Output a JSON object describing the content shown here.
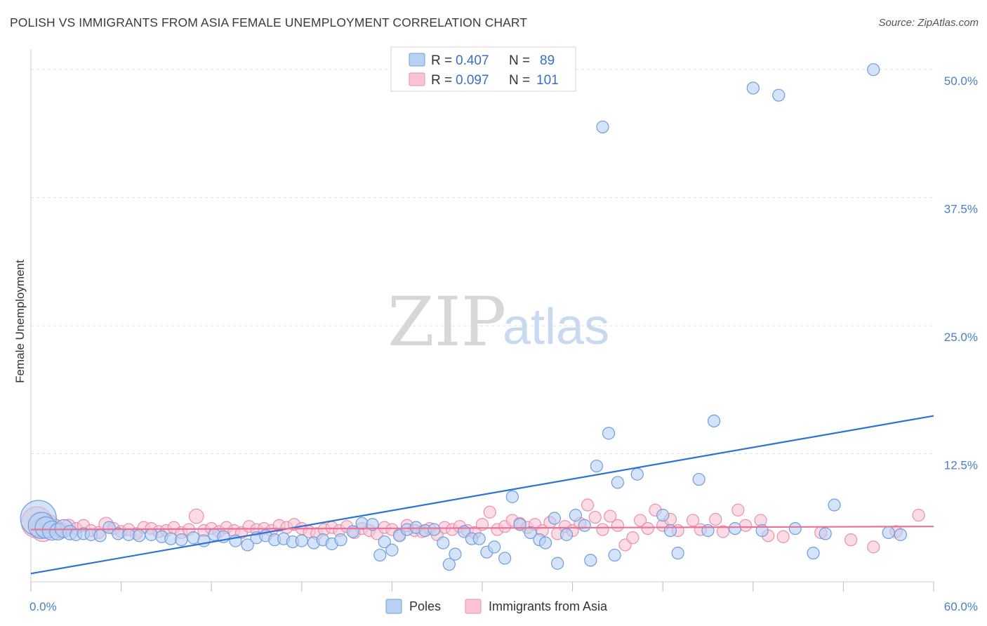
{
  "title": "POLISH VS IMMIGRANTS FROM ASIA FEMALE UNEMPLOYMENT CORRELATION CHART",
  "source": "Source: ZipAtlas.com",
  "watermark": {
    "zip": "ZIP",
    "atlas": "atlas"
  },
  "colors": {
    "poles_fill": "#b8d0f2",
    "poles_stroke": "#6e9de0",
    "poles_line": "#2e72d2",
    "asia_fill": "#f8c4d4",
    "asia_stroke": "#ea8fad",
    "asia_line": "#e8729a",
    "grid": "#dddddd",
    "axis_text": "#4a7fc8"
  },
  "legend": {
    "rows": [
      {
        "r_label": "R = ",
        "r_value": "0.407",
        "n_label": "N = ",
        "n_value": "89"
      },
      {
        "r_label": "R = ",
        "r_value": "0.097",
        "n_label": "N = ",
        "n_value": "101"
      }
    ]
  },
  "chart_data": {
    "type": "scatter",
    "title": "POLISH VS IMMIGRANTS FROM ASIA FEMALE UNEMPLOYMENT CORRELATION CHART",
    "xlabel": "",
    "ylabel": "Female Unemployment",
    "xlim": [
      0,
      60
    ],
    "ylim": [
      0,
      52
    ],
    "x_tick_labels": [
      "0.0%",
      "60.0%"
    ],
    "y_ticks": [
      12.5,
      25.0,
      37.5,
      50.0
    ],
    "y_tick_labels": [
      "12.5%",
      "25.0%",
      "37.5%",
      "50.0%"
    ],
    "grid": true,
    "legend_position": "top-center",
    "series": [
      {
        "name": "Poles",
        "r": 0.407,
        "n": 89,
        "trend": {
          "x": [
            0,
            60
          ],
          "y": [
            0.8,
            16.2
          ]
        },
        "points": [
          [
            0.5,
            6.2,
            3
          ],
          [
            0.7,
            5.5,
            2.2
          ],
          [
            1.0,
            5.3,
            1.8
          ],
          [
            1.4,
            5.0,
            1.6
          ],
          [
            1.8,
            4.9,
            1.4
          ],
          [
            2.2,
            5.2,
            1.5
          ],
          [
            2.6,
            4.8,
            1.2
          ],
          [
            3.0,
            4.6,
            1
          ],
          [
            3.5,
            4.7,
            1
          ],
          [
            4.0,
            4.6,
            1
          ],
          [
            4.6,
            4.5,
            1
          ],
          [
            5.2,
            5.3,
            1
          ],
          [
            5.8,
            4.7,
            1
          ],
          [
            6.5,
            4.6,
            1
          ],
          [
            7.2,
            4.5,
            1
          ],
          [
            8.0,
            4.6,
            1
          ],
          [
            8.7,
            4.4,
            1
          ],
          [
            9.3,
            4.2,
            1
          ],
          [
            10.0,
            4.1,
            1
          ],
          [
            10.8,
            4.3,
            1
          ],
          [
            11.5,
            4.0,
            1
          ],
          [
            12.2,
            4.6,
            1
          ],
          [
            12.8,
            4.4,
            1
          ],
          [
            13.6,
            4.0,
            1
          ],
          [
            14.4,
            3.6,
            1
          ],
          [
            15.0,
            4.3,
            1
          ],
          [
            15.6,
            4.5,
            1
          ],
          [
            16.2,
            4.1,
            1
          ],
          [
            16.8,
            4.2,
            1
          ],
          [
            17.4,
            3.9,
            1
          ],
          [
            18.0,
            4.0,
            1
          ],
          [
            18.8,
            3.8,
            1
          ],
          [
            19.4,
            4.1,
            1
          ],
          [
            20.0,
            3.7,
            1
          ],
          [
            20.6,
            4.1,
            1
          ],
          [
            21.4,
            4.9,
            1
          ],
          [
            22.0,
            5.7,
            1
          ],
          [
            22.7,
            5.6,
            1
          ],
          [
            23.2,
            2.6,
            1
          ],
          [
            23.5,
            3.9,
            1
          ],
          [
            24.0,
            3.1,
            1
          ],
          [
            24.5,
            4.5,
            1
          ],
          [
            25.0,
            5.1,
            1
          ],
          [
            25.6,
            5.3,
            1
          ],
          [
            26.2,
            5.0,
            1
          ],
          [
            26.8,
            5.1,
            1
          ],
          [
            27.4,
            3.8,
            1
          ],
          [
            27.8,
            1.7,
            1
          ],
          [
            28.2,
            2.7,
            1
          ],
          [
            28.8,
            4.9,
            1
          ],
          [
            29.3,
            4.2,
            1
          ],
          [
            29.8,
            4.2,
            1
          ],
          [
            30.3,
            2.9,
            1
          ],
          [
            30.8,
            3.4,
            1
          ],
          [
            31.5,
            2.3,
            1
          ],
          [
            32.0,
            8.3,
            1
          ],
          [
            32.5,
            5.6,
            1
          ],
          [
            33.2,
            4.8,
            1
          ],
          [
            33.8,
            4.1,
            1
          ],
          [
            34.2,
            3.8,
            1
          ],
          [
            34.8,
            6.2,
            1
          ],
          [
            35.0,
            1.8,
            1
          ],
          [
            35.6,
            4.6,
            1
          ],
          [
            36.2,
            6.5,
            1
          ],
          [
            36.8,
            5.5,
            1
          ],
          [
            37.2,
            2.1,
            1
          ],
          [
            37.6,
            11.3,
            1
          ],
          [
            38.0,
            44.4,
            1
          ],
          [
            38.4,
            14.5,
            1
          ],
          [
            38.8,
            2.6,
            1
          ],
          [
            39.0,
            9.7,
            1
          ],
          [
            40.3,
            10.5,
            1
          ],
          [
            42.0,
            6.5,
            1
          ],
          [
            42.5,
            5.0,
            1
          ],
          [
            43.0,
            2.8,
            1
          ],
          [
            44.4,
            10.0,
            1
          ],
          [
            45.0,
            5.0,
            1
          ],
          [
            45.4,
            15.7,
            1
          ],
          [
            46.8,
            5.2,
            1
          ],
          [
            48.0,
            48.2,
            1
          ],
          [
            48.6,
            5.0,
            1
          ],
          [
            49.7,
            47.5,
            1
          ],
          [
            50.8,
            5.2,
            1
          ],
          [
            52.0,
            2.8,
            1
          ],
          [
            52.8,
            4.7,
            1
          ],
          [
            53.4,
            7.5,
            1
          ],
          [
            56.0,
            50.0,
            1
          ],
          [
            57.0,
            4.8,
            1
          ],
          [
            57.8,
            4.6,
            1
          ]
        ]
      },
      {
        "name": "Immigrants from Asia",
        "r": 0.097,
        "n": 101,
        "trend": {
          "x": [
            0,
            60
          ],
          "y": [
            5.1,
            5.4
          ]
        },
        "points": [
          [
            0.4,
            5.8,
            2.6
          ],
          [
            0.8,
            5.1,
            2
          ],
          [
            1.2,
            5.6,
            1.6
          ],
          [
            1.6,
            5.3,
            1.4
          ],
          [
            2.0,
            5.0,
            1.3
          ],
          [
            2.5,
            5.4,
            1.2
          ],
          [
            3.0,
            5.2,
            1
          ],
          [
            3.5,
            5.5,
            1
          ],
          [
            4.0,
            5.0,
            1
          ],
          [
            4.5,
            4.8,
            1
          ],
          [
            5.0,
            5.6,
            1.2
          ],
          [
            5.5,
            5.2,
            1
          ],
          [
            6.0,
            4.9,
            1
          ],
          [
            6.5,
            5.1,
            1
          ],
          [
            7.0,
            4.7,
            1
          ],
          [
            7.5,
            5.3,
            1
          ],
          [
            8.0,
            5.2,
            1
          ],
          [
            8.5,
            4.9,
            1
          ],
          [
            9.0,
            5.0,
            1
          ],
          [
            9.5,
            5.3,
            1
          ],
          [
            10.0,
            4.8,
            1
          ],
          [
            10.5,
            5.1,
            1
          ],
          [
            11.0,
            6.4,
            1.2
          ],
          [
            11.5,
            5.0,
            1
          ],
          [
            12.0,
            5.2,
            1
          ],
          [
            12.5,
            4.9,
            1
          ],
          [
            13.0,
            5.3,
            1
          ],
          [
            13.5,
            5.0,
            1
          ],
          [
            14.0,
            4.8,
            1
          ],
          [
            14.5,
            5.4,
            1
          ],
          [
            15.0,
            5.1,
            1
          ],
          [
            15.5,
            5.2,
            1
          ],
          [
            16.0,
            5.0,
            1
          ],
          [
            16.5,
            5.5,
            1
          ],
          [
            17.0,
            5.3,
            1
          ],
          [
            17.5,
            5.6,
            1
          ],
          [
            18.0,
            5.2,
            1
          ],
          [
            18.5,
            4.9,
            1
          ],
          [
            19.0,
            4.7,
            1
          ],
          [
            19.5,
            5.1,
            1
          ],
          [
            20.0,
            5.3,
            1
          ],
          [
            20.5,
            5.0,
            1
          ],
          [
            21.0,
            5.4,
            1
          ],
          [
            21.5,
            4.8,
            1
          ],
          [
            22.0,
            5.2,
            1
          ],
          [
            22.5,
            5.0,
            1
          ],
          [
            23.0,
            4.7,
            1
          ],
          [
            23.5,
            5.3,
            1
          ],
          [
            24.0,
            5.1,
            1
          ],
          [
            24.5,
            4.6,
            1
          ],
          [
            25.0,
            5.5,
            1
          ],
          [
            25.5,
            5.0,
            1
          ],
          [
            26.0,
            4.9,
            1
          ],
          [
            26.5,
            5.2,
            1
          ],
          [
            27.0,
            4.6,
            1
          ],
          [
            27.5,
            5.3,
            1
          ],
          [
            28.0,
            5.1,
            1
          ],
          [
            28.5,
            5.4,
            1
          ],
          [
            29.0,
            5.0,
            1
          ],
          [
            29.5,
            4.8,
            1
          ],
          [
            30.0,
            5.6,
            1
          ],
          [
            30.5,
            6.8,
            1
          ],
          [
            31.0,
            5.1,
            1
          ],
          [
            31.5,
            5.4,
            1
          ],
          [
            32.0,
            6.0,
            1
          ],
          [
            32.5,
            5.7,
            1
          ],
          [
            33.0,
            5.3,
            1
          ],
          [
            33.5,
            5.6,
            1
          ],
          [
            34.0,
            5.0,
            1
          ],
          [
            34.5,
            5.8,
            1
          ],
          [
            35.0,
            4.7,
            1
          ],
          [
            35.5,
            5.4,
            1
          ],
          [
            36.0,
            5.0,
            1
          ],
          [
            36.5,
            5.7,
            1
          ],
          [
            37.0,
            7.5,
            1
          ],
          [
            37.5,
            6.3,
            1
          ],
          [
            38.0,
            5.1,
            1
          ],
          [
            38.5,
            6.4,
            1
          ],
          [
            39.0,
            5.5,
            1
          ],
          [
            39.5,
            3.6,
            1
          ],
          [
            40.0,
            4.3,
            1
          ],
          [
            40.5,
            6.0,
            1
          ],
          [
            41.0,
            5.2,
            1
          ],
          [
            41.5,
            7.0,
            1
          ],
          [
            42.0,
            5.5,
            1
          ],
          [
            42.5,
            6.1,
            1
          ],
          [
            43.0,
            5.0,
            1
          ],
          [
            44.0,
            6.0,
            1
          ],
          [
            44.5,
            5.1,
            1
          ],
          [
            45.5,
            6.1,
            1
          ],
          [
            46.0,
            4.9,
            1
          ],
          [
            47.0,
            7.0,
            1
          ],
          [
            47.5,
            5.5,
            1
          ],
          [
            48.5,
            6.0,
            1
          ],
          [
            49.0,
            4.5,
            1
          ],
          [
            50.0,
            4.4,
            1
          ],
          [
            52.5,
            4.8,
            1
          ],
          [
            54.5,
            4.1,
            1
          ],
          [
            56.0,
            3.4,
            1
          ],
          [
            57.5,
            4.9,
            1
          ],
          [
            59.0,
            6.5,
            1
          ]
        ]
      }
    ]
  }
}
